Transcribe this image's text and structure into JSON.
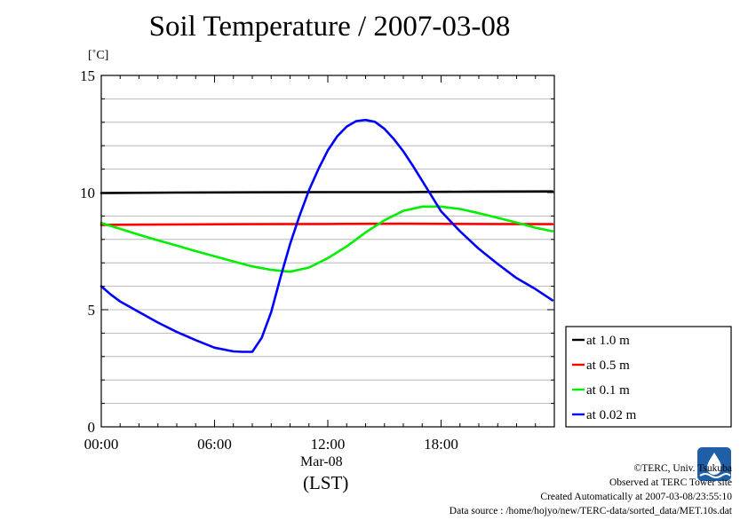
{
  "title": "Soil Temperature / 2007-03-08",
  "yunit": "[˚C]",
  "xdate": "Mar-08",
  "xlabel": "(LST)",
  "credits": {
    "line1": "©TERC, Univ. Tsukuba",
    "line2": "Observed at TERC Tower site",
    "line3": "Created Automatically at 2007-03-08/23:55:10",
    "line4": "Data source : /home/hojyo/new/TERC-data/sorted_data/MET.10s.dat"
  },
  "logo_icon": "terc-logo-icon",
  "chart_data": {
    "type": "line",
    "xlim": [
      0,
      24
    ],
    "ylim": [
      0,
      15
    ],
    "x_ticks": [
      0,
      6,
      12,
      18
    ],
    "x_tick_labels": [
      "00:00",
      "06:00",
      "12:00",
      "18:00"
    ],
    "y_ticks": [
      0,
      5,
      10,
      15
    ],
    "y_tick_labels": [
      "0",
      "5",
      "10",
      "15"
    ],
    "grid": true,
    "legend_position": "right",
    "series": [
      {
        "name": "at 1.0 m",
        "color": "#000000",
        "x": [
          0,
          4,
          8,
          12,
          16,
          20,
          23.9
        ],
        "y": [
          9.98,
          10.0,
          10.01,
          10.02,
          10.02,
          10.04,
          10.05
        ]
      },
      {
        "name": "at 0.5 m",
        "color": "#ff0000",
        "x": [
          0,
          4,
          8,
          12,
          16,
          20,
          23.9
        ],
        "y": [
          8.62,
          8.64,
          8.65,
          8.66,
          8.67,
          8.66,
          8.65
        ]
      },
      {
        "name": "at 0.1 m",
        "color": "#00ee00",
        "x": [
          0,
          1,
          2,
          3,
          4,
          5,
          6,
          7,
          8,
          9,
          10,
          11,
          12,
          13,
          14,
          15,
          16,
          17,
          18,
          19,
          20,
          21,
          22,
          23,
          23.9
        ],
        "y": [
          8.7,
          8.45,
          8.2,
          7.96,
          7.74,
          7.5,
          7.28,
          7.06,
          6.85,
          6.7,
          6.62,
          6.8,
          7.2,
          7.7,
          8.3,
          8.82,
          9.22,
          9.4,
          9.4,
          9.3,
          9.12,
          8.92,
          8.72,
          8.5,
          8.35
        ]
      },
      {
        "name": "at 0.02 m",
        "color": "#0000ff",
        "x": [
          0,
          0.5,
          1,
          2,
          3,
          4,
          5,
          6,
          7,
          7.5,
          8,
          8.5,
          9,
          9.5,
          10,
          10.5,
          11,
          11.5,
          12,
          12.5,
          13,
          13.5,
          14,
          14.5,
          15,
          15.5,
          16,
          16.5,
          17,
          17.5,
          18,
          19,
          20,
          21,
          22,
          23,
          23.9
        ],
        "y": [
          6.0,
          5.65,
          5.35,
          4.9,
          4.45,
          4.05,
          3.7,
          3.38,
          3.22,
          3.2,
          3.2,
          3.8,
          4.9,
          6.4,
          7.8,
          9.0,
          10.1,
          11.0,
          11.8,
          12.4,
          12.82,
          13.05,
          13.1,
          13.02,
          12.72,
          12.28,
          11.76,
          11.15,
          10.5,
          9.85,
          9.2,
          8.35,
          7.6,
          6.95,
          6.35,
          5.88,
          5.4
        ]
      }
    ]
  }
}
